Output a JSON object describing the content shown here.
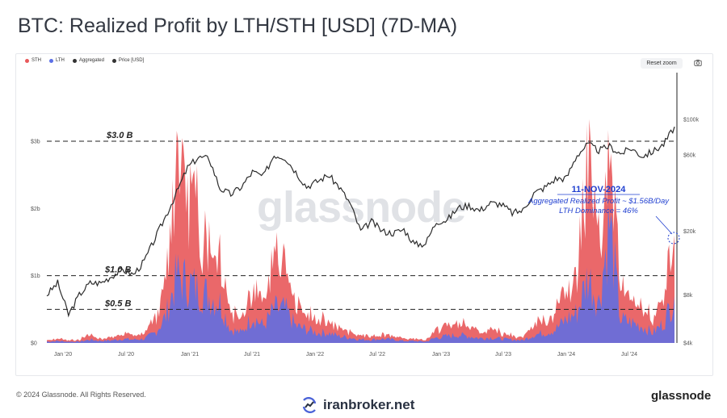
{
  "page": {
    "title": "BTC: Realized Profit by LTH/STH [USD] (7D-MA)",
    "reset_zoom": "Reset zoom",
    "watermark": "glassnode",
    "copyright": "© 2024 Glassnode. All Rights Reserved.",
    "footer_brand": "glassnode",
    "broker_brand": "iranbroker.net"
  },
  "legend": [
    {
      "name": "STH",
      "color": "#e8585a"
    },
    {
      "name": "LTH",
      "color": "#5b6fe6"
    },
    {
      "name": "Aggregated",
      "color": "#333333"
    },
    {
      "name": "Price [USD]",
      "color": "#333333"
    }
  ],
  "chart_data": {
    "type": "area",
    "x_ticks": [
      "Jan '20",
      "Jul '20",
      "Jan '21",
      "Jul '21",
      "Jan '22",
      "Jul '22",
      "Jan '23",
      "Jul '23",
      "Jan '24",
      "Jul '24"
    ],
    "y_left_ticks": [
      "$0",
      "$1b",
      "$2b",
      "$3b"
    ],
    "y_left_range": [
      0,
      3000000000
    ],
    "y_right_ticks": [
      "$4k",
      "$8k",
      "$20k",
      "$60k",
      "$100k"
    ],
    "y_right_scale": "log",
    "y_right_range": [
      4000,
      130000
    ],
    "grid": false,
    "legend_position": "top-left",
    "x": [
      "2020-01",
      "2020-02",
      "2020-03",
      "2020-04",
      "2020-05",
      "2020-06",
      "2020-07",
      "2020-08",
      "2020-09",
      "2020-10",
      "2020-11",
      "2020-12",
      "2021-01",
      "2021-02",
      "2021-03",
      "2021-04",
      "2021-05",
      "2021-06",
      "2021-07",
      "2021-08",
      "2021-09",
      "2021-10",
      "2021-11",
      "2021-12",
      "2022-01",
      "2022-02",
      "2022-03",
      "2022-04",
      "2022-05",
      "2022-06",
      "2022-07",
      "2022-08",
      "2022-09",
      "2022-10",
      "2022-11",
      "2022-12",
      "2023-01",
      "2023-02",
      "2023-03",
      "2023-04",
      "2023-05",
      "2023-06",
      "2023-07",
      "2023-08",
      "2023-09",
      "2023-10",
      "2023-11",
      "2023-12",
      "2024-01",
      "2024-02",
      "2024-03",
      "2024-04",
      "2024-05",
      "2024-06",
      "2024-07",
      "2024-08",
      "2024-09",
      "2024-10",
      "2024-11"
    ],
    "series": [
      {
        "name": "STH",
        "color": "#e8585a",
        "values": [
          0.03,
          0.06,
          0.04,
          0.05,
          0.12,
          0.05,
          0.08,
          0.15,
          0.1,
          0.12,
          0.35,
          0.8,
          3.2,
          2.4,
          1.8,
          1.5,
          1.4,
          0.5,
          0.4,
          0.9,
          0.5,
          1.2,
          1.0,
          0.5,
          0.4,
          0.3,
          0.3,
          0.2,
          0.15,
          0.1,
          0.1,
          0.12,
          0.08,
          0.06,
          0.05,
          0.04,
          0.2,
          0.25,
          0.3,
          0.25,
          0.15,
          0.2,
          0.15,
          0.1,
          0.08,
          0.3,
          0.35,
          0.5,
          0.7,
          1.0,
          3.2,
          1.5,
          1.6,
          0.7,
          0.6,
          0.5,
          0.3,
          0.6,
          1.5
        ]
      },
      {
        "name": "LTH",
        "color": "#5b6fe6",
        "values": [
          0.02,
          0.03,
          0.02,
          0.02,
          0.05,
          0.03,
          0.04,
          0.06,
          0.05,
          0.06,
          0.15,
          0.4,
          1.0,
          0.9,
          0.8,
          0.7,
          0.6,
          0.2,
          0.15,
          0.4,
          0.25,
          0.5,
          0.5,
          0.25,
          0.2,
          0.15,
          0.15,
          0.1,
          0.08,
          0.05,
          0.05,
          0.06,
          0.05,
          0.03,
          0.03,
          0.02,
          0.08,
          0.1,
          0.12,
          0.1,
          0.07,
          0.08,
          0.06,
          0.05,
          0.04,
          0.12,
          0.15,
          0.2,
          0.35,
          0.45,
          1.0,
          0.6,
          1.8,
          0.35,
          0.3,
          0.25,
          0.15,
          0.3,
          0.7
        ]
      },
      {
        "name": "Price [USD]",
        "color": "#333333",
        "values": [
          8000,
          9500,
          6000,
          8000,
          9500,
          9500,
          10500,
          11500,
          10700,
          13000,
          18000,
          25000,
          35000,
          50000,
          58000,
          57000,
          37000,
          34000,
          38000,
          47000,
          44000,
          60000,
          58000,
          47000,
          38000,
          41000,
          45000,
          38000,
          30000,
          20000,
          23000,
          20000,
          19500,
          20500,
          16500,
          16800,
          23000,
          23500,
          28000,
          29000,
          27000,
          30000,
          29500,
          26000,
          27000,
          34500,
          37500,
          42500,
          43000,
          60000,
          70000,
          64000,
          68000,
          61000,
          66000,
          59000,
          63000,
          70000,
          90000
        ]
      }
    ],
    "reference_lines": [
      {
        "label": "$3.0 B",
        "value": 3000000000
      },
      {
        "label": "$1.0 B",
        "value": 1000000000
      },
      {
        "label": "$0.5 B",
        "value": 500000000
      }
    ],
    "annotation": {
      "date": "11-NOV-2024",
      "line1": "Aggregated Realized Profit ~ $1.56B/Day",
      "line2": "LTH Dominance = 46%"
    }
  }
}
